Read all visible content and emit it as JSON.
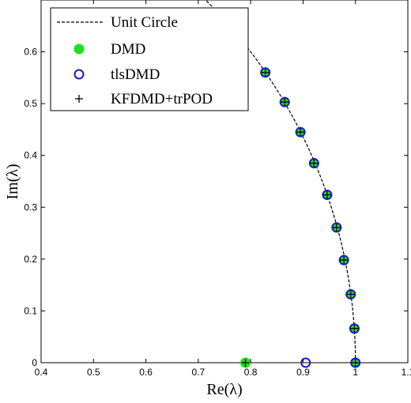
{
  "chart_data": {
    "type": "scatter",
    "xlabel": "Re(λ)",
    "ylabel": "Im(λ)",
    "xlim": [
      0.4,
      1.1
    ],
    "ylim": [
      0,
      0.7
    ],
    "xticks": [
      "0.4",
      "0.5",
      "0.6",
      "0.7",
      "0.8",
      "0.9",
      "1",
      "1.1"
    ],
    "yticks": [
      "0",
      "0.1",
      "0.2",
      "0.3",
      "0.4",
      "0.5",
      "0.6"
    ],
    "grid": false,
    "legend_position": "top-left",
    "series": [
      {
        "name": "Unit Circle",
        "style": "dashed-line",
        "color": "#000000",
        "x": [],
        "y": []
      },
      {
        "name": "DMD",
        "style": "filled-circle",
        "color": "#22dd22",
        "x": [
          0.79,
          0.828,
          0.865,
          0.895,
          0.921,
          0.946,
          0.964,
          0.978,
          0.991,
          0.998,
          1.0
        ],
        "y": [
          0.0,
          0.56,
          0.503,
          0.445,
          0.385,
          0.324,
          0.261,
          0.198,
          0.132,
          0.066,
          0.0
        ]
      },
      {
        "name": "tlsDMD",
        "style": "open-circle",
        "color": "#1a1acc",
        "x": [
          0.905,
          0.828,
          0.865,
          0.895,
          0.921,
          0.946,
          0.964,
          0.978,
          0.991,
          0.998,
          1.0
        ],
        "y": [
          0.0,
          0.56,
          0.503,
          0.445,
          0.385,
          0.324,
          0.261,
          0.198,
          0.132,
          0.066,
          0.0
        ]
      },
      {
        "name": "KFDMD+trPOD",
        "style": "plus",
        "color": "#000000",
        "x": [
          0.79,
          0.828,
          0.865,
          0.895,
          0.921,
          0.946,
          0.964,
          0.978,
          0.991,
          0.998,
          1.0
        ],
        "y": [
          0.0,
          0.56,
          0.503,
          0.445,
          0.385,
          0.324,
          0.261,
          0.198,
          0.132,
          0.066,
          0.0
        ]
      }
    ]
  }
}
